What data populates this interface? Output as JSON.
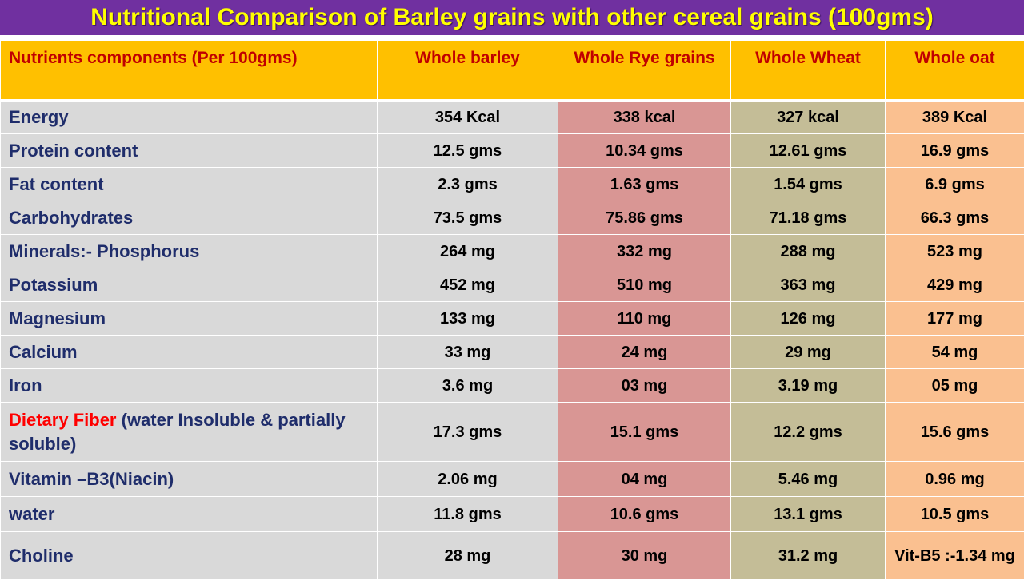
{
  "title": "Nutritional Comparison of Barley grains with other cereal grains (100gms)",
  "headers": {
    "nutrient": "Nutrients components (Per 100gms)",
    "barley": "Whole barley",
    "rye": "Whole Rye grains",
    "wheat": "Whole Wheat",
    "oat": "Whole oat"
  },
  "rows": [
    {
      "nutrient": "Energy",
      "barley": "354 Kcal",
      "rye": "338 kcal",
      "wheat": "327 kcal",
      "oat": "389 Kcal"
    },
    {
      "nutrient": "Protein content",
      "barley": "12.5 gms",
      "rye": "10.34 gms",
      "wheat": "12.61 gms",
      "oat": "16.9 gms"
    },
    {
      "nutrient": "Fat content",
      "barley": "2.3 gms",
      "rye": "1.63 gms",
      "wheat": "1.54 gms",
      "oat": "6.9 gms"
    },
    {
      "nutrient": "Carbohydrates",
      "barley": "73.5 gms",
      "rye": "75.86 gms",
      "wheat": "71.18 gms",
      "oat": "66.3 gms"
    },
    {
      "nutrient": "Minerals:- Phosphorus",
      "barley": "264 mg",
      "rye": "332 mg",
      "wheat": "288 mg",
      "oat": "523 mg"
    },
    {
      "nutrient": "Potassium",
      "barley": "452 mg",
      "rye": "510 mg",
      "wheat": "363 mg",
      "oat": "429 mg"
    },
    {
      "nutrient": "Magnesium",
      "barley": "133 mg",
      "rye": "110 mg",
      "wheat": "126 mg",
      "oat": "177 mg"
    },
    {
      "nutrient": "Calcium",
      "barley": "33 mg",
      "rye": "24 mg",
      "wheat": "29 mg",
      "oat": "54 mg"
    },
    {
      "nutrient": "Iron",
      "barley": "3.6 mg",
      "rye": "03 mg",
      "wheat": "3.19 mg",
      "oat": "05 mg"
    },
    {
      "nutrient_highlight": "Dietary Fiber",
      "nutrient": " (water Insoluble & partially soluble)",
      "barley": "17.3  gms",
      "rye": "15.1 gms",
      "wheat": "12.2 gms",
      "oat": "15.6  gms"
    },
    {
      "nutrient": "Vitamin –B3(Niacin)",
      "barley": "2.06 mg",
      "rye": "04 mg",
      "wheat": "5.46 mg",
      "oat": "0.96 mg"
    },
    {
      "nutrient": "water",
      "barley": "11.8 gms",
      "rye": "10.6 gms",
      "wheat": "13.1  gms",
      "oat": "10.5 gms"
    },
    {
      "nutrient": "Choline",
      "barley": "28 mg",
      "rye": "30 mg",
      "wheat": "31.2 mg",
      "oat": "Vit-B5 :-1.34 mg"
    }
  ]
}
